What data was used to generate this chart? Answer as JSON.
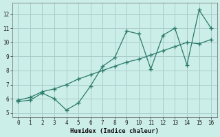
{
  "xlabel": "Humidex (Indice chaleur)",
  "background_color": "#cceee8",
  "grid_color": "#aacccc",
  "line_color": "#2a7a6a",
  "x_data": [
    0,
    1,
    2,
    3,
    4,
    5,
    6,
    7,
    8,
    9,
    10,
    11,
    12,
    13,
    14,
    15,
    16
  ],
  "y_zigzag": [
    5.8,
    5.9,
    6.4,
    6.0,
    5.2,
    5.7,
    6.9,
    8.3,
    8.9,
    10.8,
    10.6,
    8.1,
    10.5,
    11.0,
    8.4,
    12.3,
    11.0
  ],
  "y_trend": [
    5.9,
    6.1,
    6.5,
    6.7,
    7.0,
    7.4,
    7.7,
    8.0,
    8.3,
    8.6,
    8.8,
    9.1,
    9.4,
    9.7,
    10.0,
    9.9,
    10.2
  ],
  "xlim": [
    -0.5,
    16.5
  ],
  "ylim": [
    4.7,
    12.8
  ],
  "yticks": [
    5,
    6,
    7,
    8,
    9,
    10,
    11,
    12
  ],
  "xticks": [
    0,
    1,
    2,
    3,
    4,
    5,
    6,
    7,
    8,
    9,
    10,
    11,
    12,
    13,
    14,
    15,
    16
  ]
}
